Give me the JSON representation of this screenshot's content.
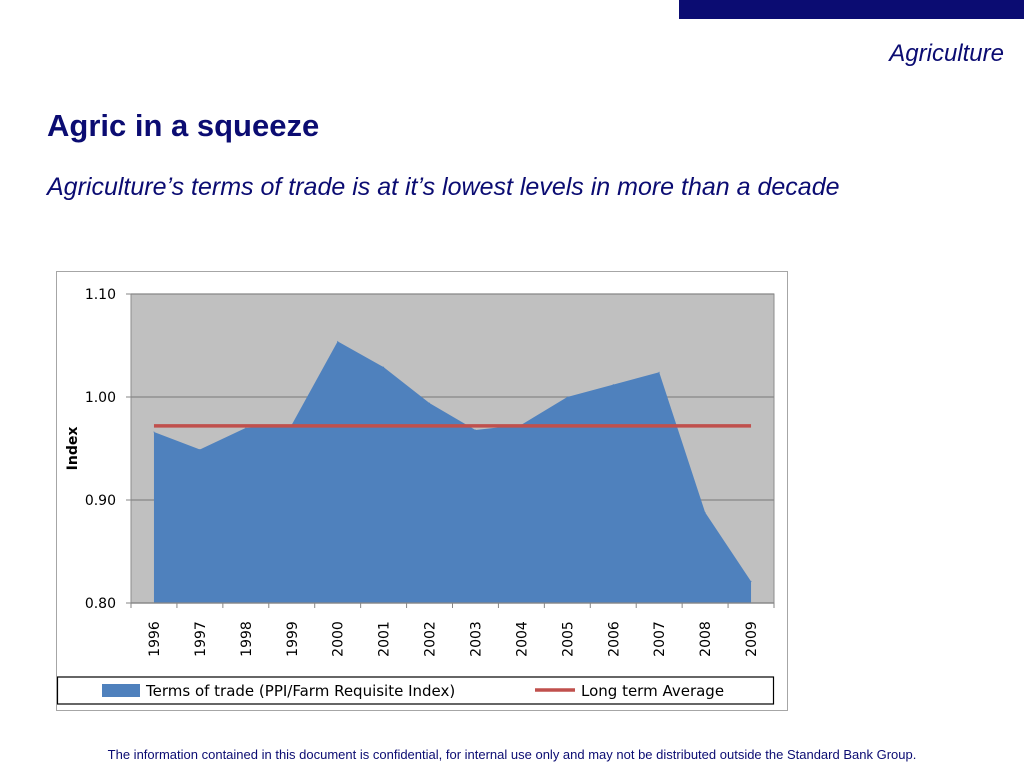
{
  "header": {
    "section_label": "Agriculture",
    "title": "Agric in a squeeze",
    "subtitle": "Agriculture’s terms of trade is at it’s lowest levels in more than a decade"
  },
  "footer": {
    "note": "The information contained in this document is confidential, for internal use only and may not be distributed outside the Standard Bank Group."
  },
  "colors": {
    "brand_navy": "#0b0c72",
    "area_fill": "#4f81bd",
    "average_line": "#c0504d",
    "plot_background": "#c0c0c0"
  },
  "chart_data": {
    "type": "area",
    "title": "",
    "xlabel": "",
    "ylabel": "Index",
    "ylim": [
      0.8,
      1.1
    ],
    "yticks": [
      "0.80",
      "0.90",
      "1.00",
      "1.10"
    ],
    "categories": [
      "1996",
      "1997",
      "1998",
      "1999",
      "2000",
      "2001",
      "2002",
      "2003",
      "2004",
      "2005",
      "2006",
      "2007",
      "2008",
      "2009"
    ],
    "series": [
      {
        "name": "Terms of trade (PPI/Farm Requisite Index)",
        "type": "area",
        "values": [
          0.966,
          0.949,
          0.97,
          0.973,
          1.054,
          1.029,
          0.994,
          0.968,
          0.973,
          1.0,
          1.012,
          1.024,
          0.888,
          0.821
        ]
      },
      {
        "name": "Long term Average",
        "type": "line",
        "values": [
          0.972,
          0.972,
          0.972,
          0.972,
          0.972,
          0.972,
          0.972,
          0.972,
          0.972,
          0.972,
          0.972,
          0.972,
          0.972,
          0.972
        ]
      }
    ],
    "grid": true,
    "legend_position": "bottom"
  }
}
